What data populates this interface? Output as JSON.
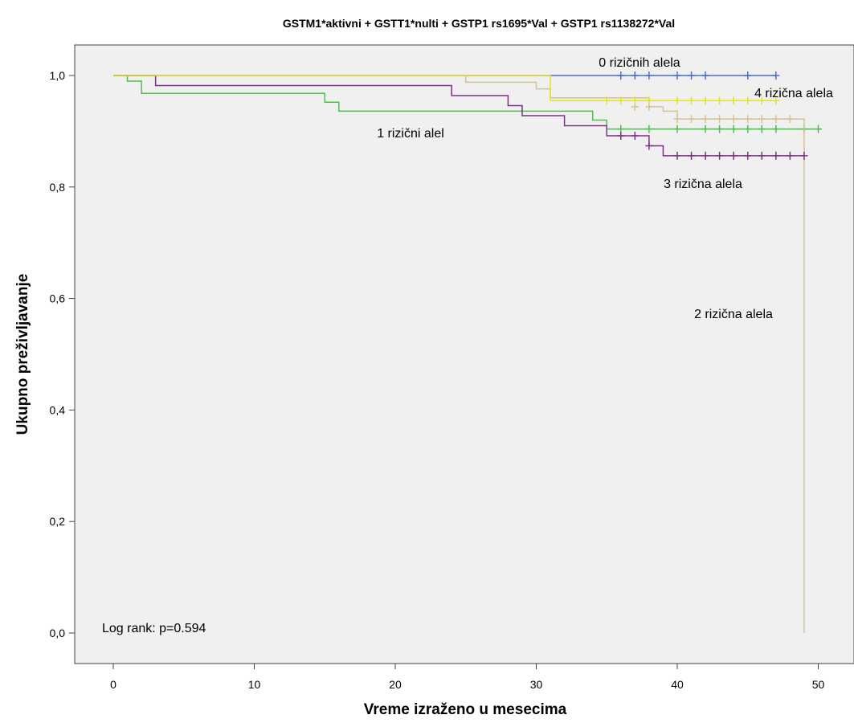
{
  "chart_data": {
    "type": "line",
    "subtype": "kaplan-meier",
    "title": "GSTM1*aktivni + GSTT1*nulti + GSTP1 rs1695*Val + GSTP1 rs1138272*Val",
    "xlabel": "Vreme izraženo u mesecima",
    "ylabel": "Ukupno preživljavanje",
    "xlim": [
      -3,
      52
    ],
    "ylim": [
      -0.05,
      1.05
    ],
    "xticks": [
      0,
      10,
      20,
      30,
      40,
      50
    ],
    "xtick_labels": [
      "0",
      "10",
      "20",
      "30",
      "40",
      "50"
    ],
    "yticks": [
      0.0,
      0.2,
      0.4,
      0.6,
      0.8,
      1.0
    ],
    "ytick_labels": [
      "0,0",
      "0,2",
      "0,4",
      "0,6",
      "0,8",
      "1,0"
    ],
    "grid": false,
    "background": "#f0f0f0",
    "annotation": "Log rank: p=0.594",
    "series": [
      {
        "name": "0 rizičnih alela",
        "color": "#4a6fc9",
        "steps": [
          [
            0,
            1.0
          ],
          [
            47,
            1.0
          ]
        ],
        "censored": [
          [
            36,
            1.0
          ],
          [
            37,
            1.0
          ],
          [
            38,
            1.0
          ],
          [
            40,
            1.0
          ],
          [
            41,
            1.0
          ],
          [
            42,
            1.0
          ],
          [
            45,
            1.0
          ],
          [
            47,
            1.0
          ]
        ]
      },
      {
        "name": "1 rizični alel",
        "color": "#4cbf4c",
        "steps": [
          [
            0,
            1.0
          ],
          [
            1,
            0.99
          ],
          [
            2,
            0.968
          ],
          [
            15,
            0.952
          ],
          [
            16,
            0.936
          ],
          [
            34,
            0.92
          ],
          [
            35,
            0.904
          ],
          [
            50,
            0.904
          ]
        ],
        "censored": [
          [
            36,
            0.904
          ],
          [
            38,
            0.904
          ],
          [
            40,
            0.904
          ],
          [
            42,
            0.904
          ],
          [
            43,
            0.904
          ],
          [
            44,
            0.904
          ],
          [
            45,
            0.904
          ],
          [
            46,
            0.904
          ],
          [
            47,
            0.904
          ],
          [
            49,
            0.904
          ],
          [
            50,
            0.904
          ]
        ]
      },
      {
        "name": "2 rizična alela",
        "color": "#d2c396",
        "steps": [
          [
            0,
            1.0
          ],
          [
            25,
            0.988
          ],
          [
            30,
            0.976
          ],
          [
            31,
            0.96
          ],
          [
            38,
            0.944
          ],
          [
            39,
            0.936
          ],
          [
            40,
            0.922
          ],
          [
            49,
            0.922
          ],
          [
            49,
            0.0
          ]
        ],
        "censored": [
          [
            37,
            0.944
          ],
          [
            38,
            0.944
          ],
          [
            40,
            0.922
          ],
          [
            41,
            0.922
          ],
          [
            42,
            0.922
          ],
          [
            43,
            0.922
          ],
          [
            44,
            0.922
          ],
          [
            45,
            0.922
          ],
          [
            46,
            0.922
          ],
          [
            47,
            0.922
          ],
          [
            48,
            0.922
          ]
        ]
      },
      {
        "name": "3 rizična alela",
        "color": "#7e2f86",
        "steps": [
          [
            0,
            1.0
          ],
          [
            3,
            0.982
          ],
          [
            24,
            0.964
          ],
          [
            28,
            0.946
          ],
          [
            29,
            0.928
          ],
          [
            32,
            0.91
          ],
          [
            35,
            0.892
          ],
          [
            38,
            0.874
          ],
          [
            39,
            0.856
          ],
          [
            49,
            0.856
          ]
        ],
        "censored": [
          [
            36,
            0.892
          ],
          [
            37,
            0.892
          ],
          [
            38,
            0.874
          ],
          [
            40,
            0.856
          ],
          [
            41,
            0.856
          ],
          [
            42,
            0.856
          ],
          [
            43,
            0.856
          ],
          [
            44,
            0.856
          ],
          [
            45,
            0.856
          ],
          [
            46,
            0.856
          ],
          [
            47,
            0.856
          ],
          [
            48,
            0.856
          ],
          [
            49,
            0.856
          ]
        ]
      },
      {
        "name": "4 rizična alela",
        "color": "#e6e21f",
        "steps": [
          [
            0,
            1.0
          ],
          [
            31,
            1.0
          ],
          [
            31,
            0.955
          ],
          [
            47,
            0.955
          ]
        ],
        "censored": [
          [
            35,
            0.955
          ],
          [
            36,
            0.955
          ],
          [
            37,
            0.955
          ],
          [
            38,
            0.955
          ],
          [
            40,
            0.955
          ],
          [
            41,
            0.955
          ],
          [
            42,
            0.955
          ],
          [
            43,
            0.955
          ],
          [
            44,
            0.955
          ],
          [
            45,
            0.955
          ],
          [
            46,
            0.955
          ],
          [
            47,
            0.955
          ]
        ]
      }
    ]
  }
}
